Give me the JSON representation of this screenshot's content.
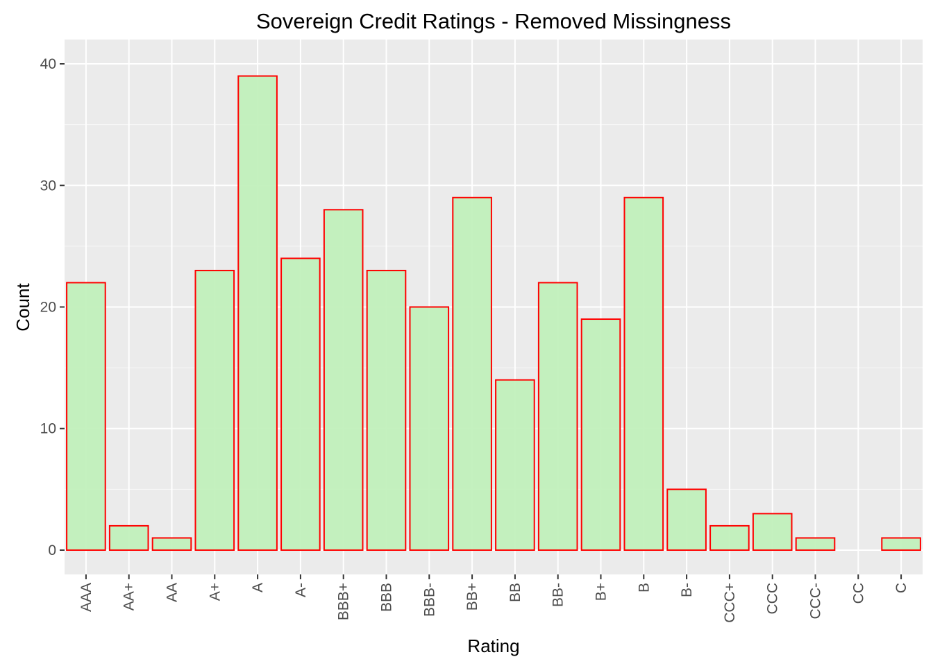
{
  "chart_data": {
    "type": "bar",
    "title": "Sovereign Credit Ratings - Removed Missingness",
    "xlabel": "Rating",
    "ylabel": "Count",
    "categories": [
      "AAA",
      "AA+",
      "AA",
      "A+",
      "A",
      "A-",
      "BBB+",
      "BBB",
      "BBB-",
      "BB+",
      "BB",
      "BB-",
      "B+",
      "B",
      "B-",
      "CCC+",
      "CCC",
      "CCC-",
      "CC",
      "C"
    ],
    "values": [
      22,
      2,
      1,
      23,
      39,
      24,
      28,
      23,
      20,
      29,
      14,
      22,
      19,
      29,
      5,
      2,
      3,
      1,
      0,
      1
    ],
    "ylim": [
      -2,
      42
    ],
    "yticks": [
      0,
      10,
      20,
      30,
      40
    ],
    "grid": true,
    "legend": "none",
    "colors": {
      "panel_background": "#ebebeb",
      "grid_major": "#ffffff",
      "bar_fill": "#c1f0bc",
      "bar_outline": "#ff0000",
      "tick_text": "#4d4d4d",
      "tick_mark": "#333333"
    }
  }
}
